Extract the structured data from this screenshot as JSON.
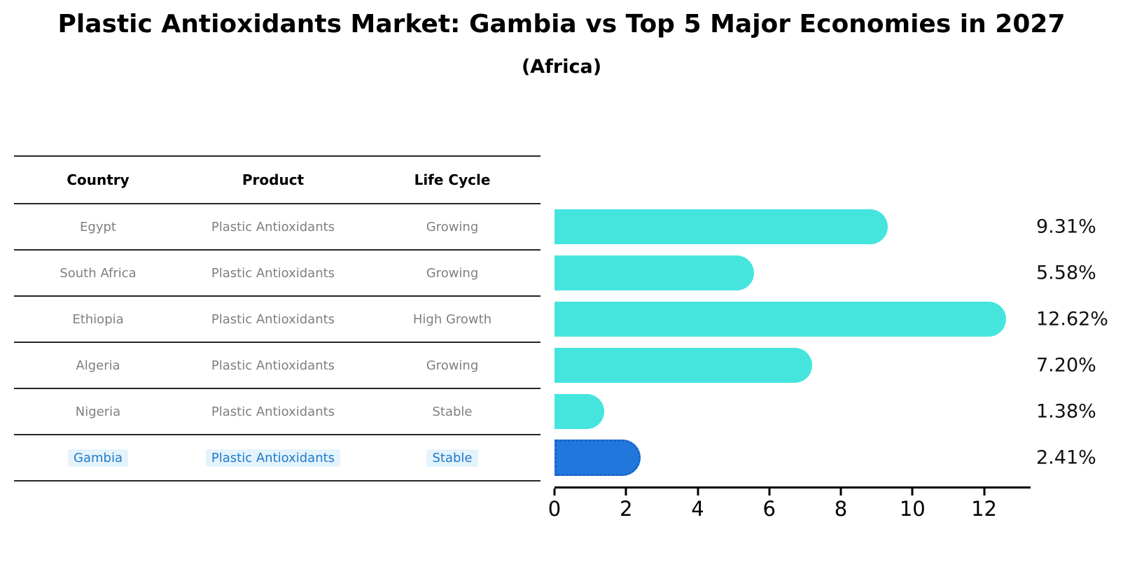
{
  "title": "Plastic Antioxidants Market: Gambia vs Top 5 Major Economies in 2027",
  "subtitle": "(Africa)",
  "table": {
    "headers": [
      "Country",
      "Product",
      "Life Cycle"
    ],
    "rows": [
      {
        "country": "Egypt",
        "product": "Plastic Antioxidants",
        "life_cycle": "Growing",
        "highlight": false
      },
      {
        "country": "South Africa",
        "product": "Plastic Antioxidants",
        "life_cycle": "Growing",
        "highlight": false
      },
      {
        "country": "Ethiopia",
        "product": "Plastic Antioxidants",
        "life_cycle": "High Growth",
        "highlight": false
      },
      {
        "country": "Algeria",
        "product": "Plastic Antioxidants",
        "life_cycle": "Growing",
        "highlight": false
      },
      {
        "country": "Nigeria",
        "product": "Plastic Antioxidants",
        "life_cycle": "Stable",
        "highlight": false
      },
      {
        "country": "Gambia",
        "product": "Plastic Antioxidants",
        "life_cycle": "Stable",
        "highlight": true
      }
    ]
  },
  "chart_data": {
    "type": "bar",
    "orientation": "horizontal",
    "title": "Plastic Antioxidants Market: Gambia vs Top 5 Major Economies in 2027",
    "subtitle": "(Africa)",
    "categories": [
      "Egypt",
      "South Africa",
      "Ethiopia",
      "Algeria",
      "Nigeria",
      "Gambia"
    ],
    "values": [
      9.31,
      5.58,
      12.62,
      7.2,
      1.38,
      2.41
    ],
    "value_labels": [
      "9.31%",
      "5.58%",
      "12.62%",
      "7.20%",
      "1.38%",
      "2.41%"
    ],
    "xlabel": "",
    "ylabel": "",
    "xticks": [
      0,
      2,
      4,
      6,
      8,
      10,
      12
    ],
    "xlim": [
      0,
      13.3
    ],
    "grid": false,
    "legend_position": "none",
    "bar_color": "#45E5DE",
    "highlight_index": 5,
    "highlight_color": "#2277DD",
    "highlight_border_color": "#1a63c4"
  },
  "colors": {
    "accent_text": "#1f7ac9",
    "accent_text_background": "#e4f3fc",
    "table_line": "#262626",
    "muted_text": "#7f7f7f",
    "axis": "#000000"
  }
}
